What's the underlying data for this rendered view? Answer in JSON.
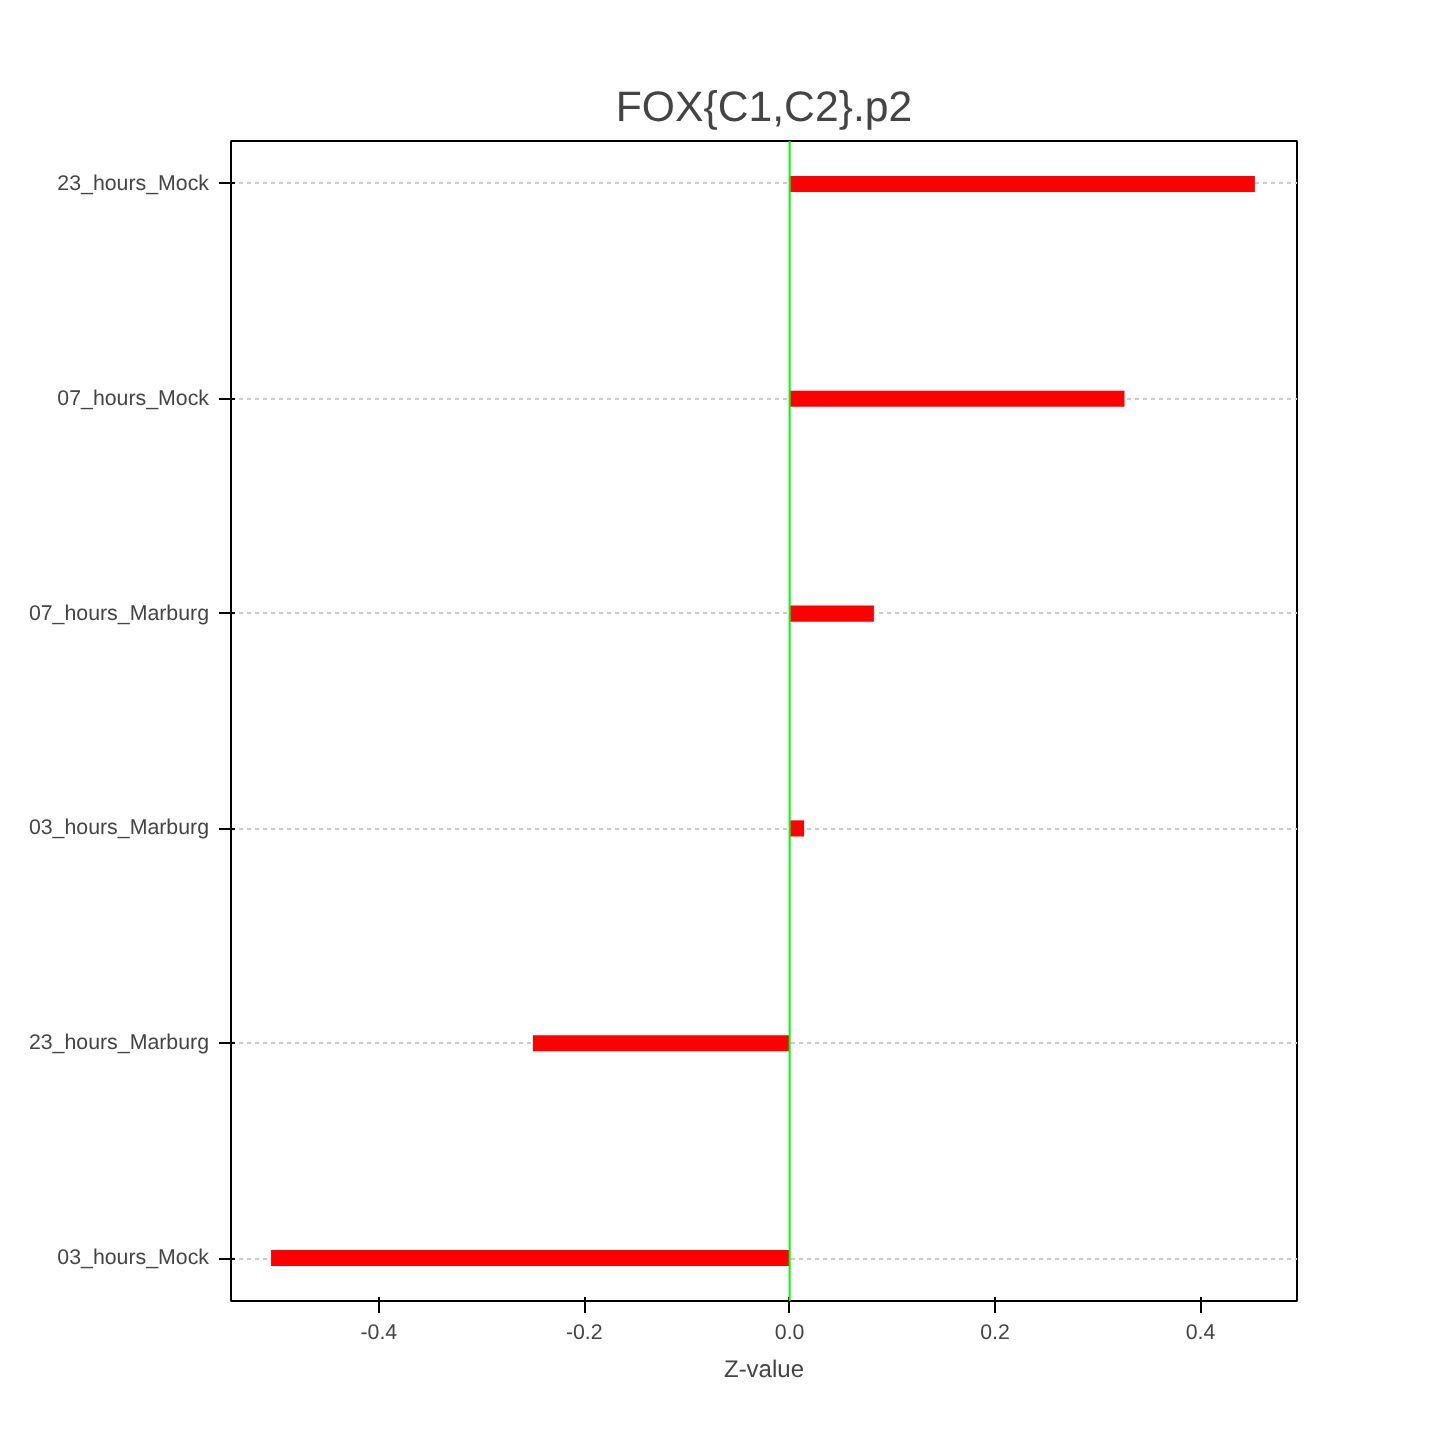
{
  "chart_data": {
    "type": "bar",
    "orientation": "horizontal",
    "title": "FOX{C1,C2}.p2",
    "xlabel": "Z-value",
    "categories": [
      "23_hours_Mock",
      "07_hours_Mock",
      "07_hours_Marburg",
      "03_hours_Marburg",
      "23_hours_Marburg",
      "03_hours_Mock"
    ],
    "values": [
      0.453,
      0.326,
      0.082,
      0.014,
      -0.25,
      -0.505
    ],
    "color": "#ff0000",
    "xlim": [
      -0.544,
      0.494
    ],
    "xticks": [
      {
        "value": -0.4,
        "label": "-0.4"
      },
      {
        "value": -0.2,
        "label": "-0.2"
      },
      {
        "value": 0,
        "label": "0.0"
      },
      {
        "value": 0.2,
        "label": "0.2"
      },
      {
        "value": 0.4,
        "label": "0.4"
      }
    ],
    "grid": "y",
    "ref_lines": [
      {
        "axis": "x",
        "value": 0,
        "color": "#00ff00"
      }
    ]
  }
}
